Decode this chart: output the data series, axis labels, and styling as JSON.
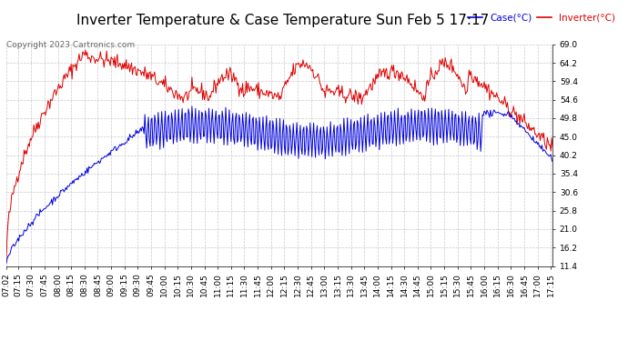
{
  "title": "Inverter Temperature & Case Temperature Sun Feb 5 17:17",
  "copyright": "Copyright 2023 Cartronics.com",
  "legend_case": "Case(°C)",
  "legend_inverter": "Inverter(°C)",
  "y_ticks": [
    11.4,
    16.2,
    21.0,
    25.8,
    30.6,
    35.4,
    40.2,
    45.0,
    49.8,
    54.6,
    59.4,
    64.2,
    69.0
  ],
  "ylim": [
    11.4,
    69.0
  ],
  "background_color": "#ffffff",
  "grid_color": "#bbbbbb",
  "case_color": "#0000dd",
  "inverter_color": "#dd0000",
  "title_fontsize": 11,
  "tick_fontsize": 6.5,
  "copyright_fontsize": 6.5
}
